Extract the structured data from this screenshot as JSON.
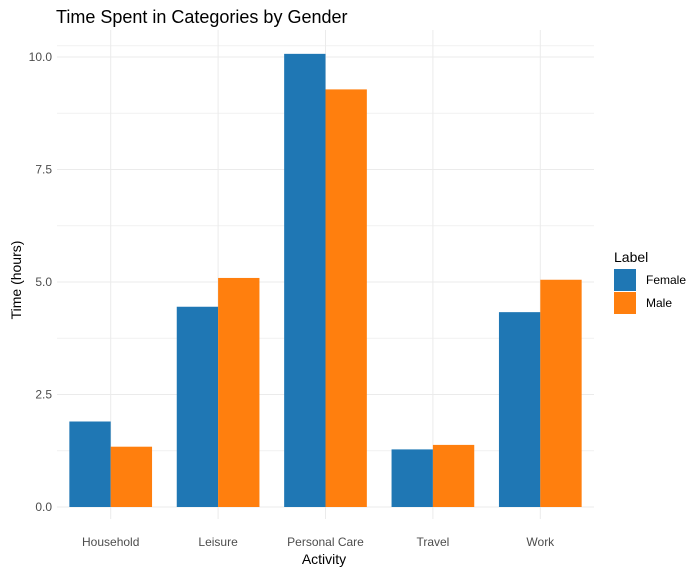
{
  "chart_data": {
    "type": "bar",
    "title": "Time Spent in Categories by Gender",
    "xlabel": "Activity",
    "ylabel": "Time (hours)",
    "categories": [
      "Household",
      "Leisure",
      "Personal Care",
      "Travel",
      "Work"
    ],
    "series": [
      {
        "name": "Female",
        "color": "#1f77b4",
        "values": [
          1.9,
          4.45,
          10.07,
          1.28,
          4.33
        ]
      },
      {
        "name": "Male",
        "color": "#ff7f0e",
        "values": [
          1.34,
          5.09,
          9.28,
          1.38,
          5.05
        ]
      }
    ],
    "yticks": [
      0,
      2.5,
      5,
      7.5,
      10
    ],
    "ytick_labels": [
      "0.0",
      "2.5",
      "5.0",
      "7.5",
      "10.0"
    ],
    "ylim": [
      0,
      10.5
    ],
    "legend": {
      "title": "Label",
      "placement": "right"
    },
    "grid": true
  }
}
